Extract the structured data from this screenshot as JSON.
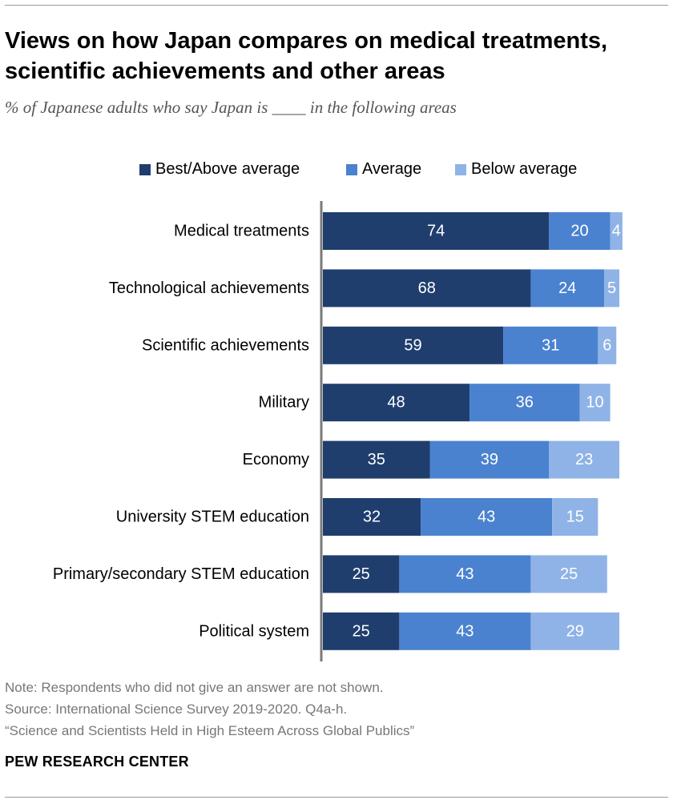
{
  "title": "Views on how Japan compares on medical treatments, scientific achievements and other areas",
  "subtitle": "% of Japanese adults who say Japan is ____ in the following areas",
  "legend": [
    {
      "label": "Best/Above average",
      "color": "#1f3e6e"
    },
    {
      "label": "Average",
      "color": "#4a82cf"
    },
    {
      "label": "Below average",
      "color": "#8fb3e6"
    }
  ],
  "chart_data": {
    "type": "bar",
    "orientation": "horizontal",
    "stacked": true,
    "categories": [
      "Medical treatments",
      "Technological achievements",
      "Scientific achievements",
      "Military",
      "Economy",
      "University STEM education",
      "Primary/secondary STEM education",
      "Political system"
    ],
    "series": [
      {
        "name": "Best/Above average",
        "color": "#1f3e6e",
        "label_color": "#ffffff",
        "values": [
          74,
          68,
          59,
          48,
          35,
          32,
          25,
          25
        ]
      },
      {
        "name": "Average",
        "color": "#4a82cf",
        "label_color": "#ffffff",
        "values": [
          20,
          24,
          31,
          36,
          39,
          43,
          43,
          43
        ]
      },
      {
        "name": "Below average",
        "color": "#8fb3e6",
        "label_color": "#ffffff",
        "values": [
          4,
          5,
          6,
          10,
          23,
          15,
          25,
          29
        ]
      }
    ],
    "xlim": [
      0,
      100
    ],
    "legend_position": "top",
    "grid": false
  },
  "notes": {
    "note": "Note: Respondents who did not give an answer are not shown.",
    "source": "Source: International Science Survey 2019-2020. Q4a-h.",
    "report": "“Science and Scientists Held in High Esteem Across Global Publics”"
  },
  "brand": "PEW RESEARCH CENTER"
}
